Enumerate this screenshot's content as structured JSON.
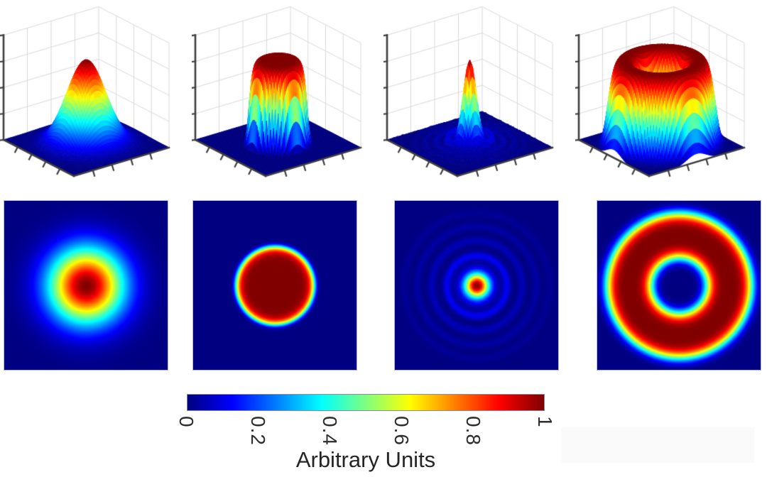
{
  "chart_data": {
    "type": "heatmap",
    "description": "Four laser beam intensity profiles, each shown as a 3D surface plot (top row) and a 2D intensity map (bottom row), sharing one jet colormap scaled 0 to 1",
    "colormap": "jet",
    "value_range": [
      0,
      1
    ],
    "domain": [
      -1,
      1
    ],
    "surface_grid": 56,
    "surface_axes": {
      "z_gridlines": 4,
      "wall_vlines": [
        0.25,
        0.5,
        0.75
      ],
      "edge_ticks": [
        0.2,
        0.4,
        0.6,
        0.8
      ],
      "z_ticks": 5
    },
    "profiles": [
      {
        "name": "gaussian-beam",
        "model": "gaussian",
        "sigma": 0.33,
        "peak": 1,
        "noise": 0
      },
      {
        "name": "flat-top-beam",
        "model": "super-gaussian",
        "width": 0.5,
        "order": 12,
        "peak": 1,
        "noise": 0
      },
      {
        "name": "bessel-beam",
        "model": "airy",
        "core_sigma": 0.155,
        "peak": 1,
        "noise": 0.016,
        "rings": {
          "radii": [
            0.38,
            0.57,
            0.75,
            0.92
          ],
          "amps": [
            0.11,
            0.055,
            0.035,
            0.022
          ],
          "sigma": 0.05
        }
      },
      {
        "name": "donut-beam",
        "model": "ring",
        "radius": 0.63,
        "width": 0.3,
        "order": 4,
        "peak": 1,
        "noise": 0
      }
    ],
    "colorbar": {
      "orientation": "horizontal",
      "min": 0,
      "max": 1,
      "tick_values": [
        0,
        0.2,
        0.4,
        0.6,
        0.8,
        1
      ],
      "tick_labels": [
        "0",
        "0.2",
        "0.4",
        "0.6",
        "0.8",
        "1"
      ],
      "tick_label_rotation_deg": 90,
      "label": "Arbitrary Units"
    }
  },
  "colors": {
    "background": "#ffffff",
    "axis": "#3d3d3d",
    "grid": "#d8d8d8",
    "text": "#2d2d2d",
    "heatmap_frame": "#b3b7da",
    "colormap_low": "#000080",
    "colormap_high": "#800000",
    "watermark_patch": "#fafafa"
  }
}
